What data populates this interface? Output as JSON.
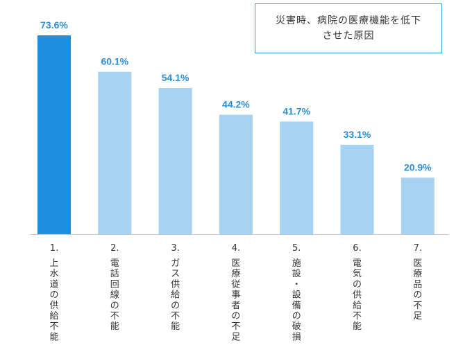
{
  "chart_data": {
    "type": "bar",
    "title": "災害時、病院の医療機能を低下させた原因",
    "categories": [
      "上水道の供給不能",
      "電話回線の不能",
      "ガス供給の不能",
      "医療従事者の不足",
      "施設・設備の破損",
      "電気の供給不能",
      "医療品の不足"
    ],
    "category_numbers": [
      "1.",
      "2.",
      "3.",
      "4.",
      "5.",
      "6.",
      "7."
    ],
    "values": [
      73.6,
      60.1,
      54.1,
      44.2,
      41.7,
      33.1,
      20.9
    ],
    "value_labels": [
      "73.6%",
      "60.1%",
      "54.1%",
      "44.2%",
      "41.7%",
      "33.1%",
      "20.9%"
    ],
    "unit": "%",
    "ylim": [
      0,
      73.6
    ],
    "grid": false,
    "legend": "top-right",
    "colors": {
      "highlight": "#1e8fe0",
      "bar": "#a6d3f2",
      "label": "#2a8fd8",
      "axis": "#cccccc"
    }
  }
}
